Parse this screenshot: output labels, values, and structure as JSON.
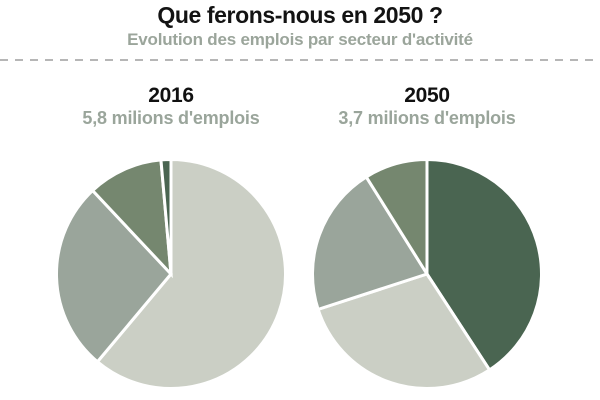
{
  "header": {
    "title": "Que ferons-nous en 2050 ?",
    "subtitle": "Evolution des emplois par secteur d'activité"
  },
  "colors": {
    "background": "#ffffff",
    "title_black": "#131313",
    "subtitle_sage": "#9ba59b",
    "divider_gray": "#b6b6b6",
    "slice_light": "#cbcfc5",
    "slice_sage": "#9aa59b",
    "slice_medium": "#75876f",
    "slice_dark": "#4a6551",
    "slice_gap_white": "#ffffff"
  },
  "chart_data": [
    {
      "type": "pie",
      "title": "2016",
      "subtitle": "5,8 milions d'emplois",
      "start_angle_deg": 0,
      "direction": "clockwise",
      "legend": "none",
      "slices": [
        {
          "percent": 61.1,
          "color": "#cbcfc5"
        },
        {
          "percent": 26.9,
          "color": "#9aa59b"
        },
        {
          "percent": 10.6,
          "color": "#75876f"
        },
        {
          "percent": 1.4,
          "color": "#4a6551"
        }
      ]
    },
    {
      "type": "pie",
      "title": "2050",
      "subtitle": "3,7 milions d'emplois",
      "start_angle_deg": 0,
      "direction": "clockwise",
      "legend": "none",
      "slices": [
        {
          "percent": 40.8,
          "color": "#4a6551"
        },
        {
          "percent": 29.2,
          "color": "#cbcfc5"
        },
        {
          "percent": 21.1,
          "color": "#9aa59b"
        },
        {
          "percent": 8.9,
          "color": "#75876f"
        }
      ]
    }
  ]
}
